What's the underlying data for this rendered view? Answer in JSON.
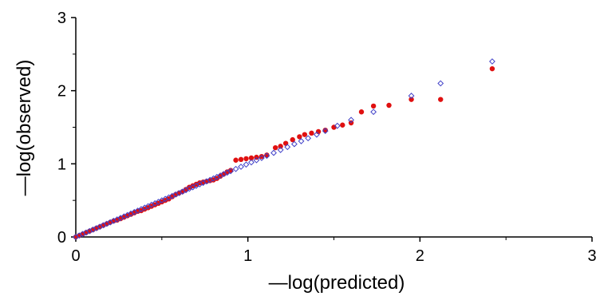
{
  "chart_data": {
    "type": "scatter",
    "title": "",
    "xlabel": "—log(predicted)",
    "ylabel": "—log(observed)",
    "xlim": [
      0,
      3
    ],
    "ylim": [
      0,
      3
    ],
    "x_ticks": [
      "0",
      "1",
      "2",
      "3"
    ],
    "y_ticks": [
      "0",
      "1",
      "2",
      "3"
    ],
    "grid": false,
    "legend": "none",
    "series": [
      {
        "marker": "circle",
        "color": "#e01010",
        "points": [
          [
            0.0,
            0.0
          ],
          [
            0.02,
            0.02
          ],
          [
            0.04,
            0.04
          ],
          [
            0.06,
            0.06
          ],
          [
            0.08,
            0.08
          ],
          [
            0.1,
            0.1
          ],
          [
            0.12,
            0.12
          ],
          [
            0.14,
            0.14
          ],
          [
            0.16,
            0.16
          ],
          [
            0.18,
            0.18
          ],
          [
            0.2,
            0.2
          ],
          [
            0.22,
            0.22
          ],
          [
            0.24,
            0.23
          ],
          [
            0.26,
            0.25
          ],
          [
            0.28,
            0.27
          ],
          [
            0.3,
            0.29
          ],
          [
            0.32,
            0.31
          ],
          [
            0.34,
            0.33
          ],
          [
            0.36,
            0.35
          ],
          [
            0.38,
            0.36
          ],
          [
            0.4,
            0.38
          ],
          [
            0.42,
            0.4
          ],
          [
            0.44,
            0.42
          ],
          [
            0.46,
            0.44
          ],
          [
            0.48,
            0.46
          ],
          [
            0.5,
            0.48
          ],
          [
            0.52,
            0.5
          ],
          [
            0.54,
            0.52
          ],
          [
            0.56,
            0.55
          ],
          [
            0.58,
            0.58
          ],
          [
            0.6,
            0.6
          ],
          [
            0.62,
            0.62
          ],
          [
            0.64,
            0.65
          ],
          [
            0.66,
            0.68
          ],
          [
            0.68,
            0.7
          ],
          [
            0.7,
            0.72
          ],
          [
            0.72,
            0.74
          ],
          [
            0.74,
            0.75
          ],
          [
            0.76,
            0.76
          ],
          [
            0.78,
            0.77
          ],
          [
            0.8,
            0.78
          ],
          [
            0.82,
            0.8
          ],
          [
            0.84,
            0.83
          ],
          [
            0.86,
            0.86
          ],
          [
            0.88,
            0.89
          ],
          [
            0.9,
            0.91
          ],
          [
            0.93,
            1.05
          ],
          [
            0.96,
            1.06
          ],
          [
            0.99,
            1.07
          ],
          [
            1.02,
            1.08
          ],
          [
            1.05,
            1.09
          ],
          [
            1.08,
            1.1
          ],
          [
            1.11,
            1.12
          ],
          [
            1.16,
            1.22
          ],
          [
            1.19,
            1.24
          ],
          [
            1.22,
            1.28
          ],
          [
            1.26,
            1.33
          ],
          [
            1.3,
            1.37
          ],
          [
            1.33,
            1.4
          ],
          [
            1.37,
            1.42
          ],
          [
            1.41,
            1.44
          ],
          [
            1.45,
            1.46
          ],
          [
            1.5,
            1.5
          ],
          [
            1.55,
            1.53
          ],
          [
            1.6,
            1.56
          ],
          [
            1.66,
            1.71
          ],
          [
            1.73,
            1.79
          ],
          [
            1.82,
            1.8
          ],
          [
            1.95,
            1.88
          ],
          [
            2.12,
            1.88
          ],
          [
            2.42,
            2.3
          ]
        ]
      },
      {
        "marker": "diamond",
        "color": "#4040c8",
        "points": [
          [
            0.0,
            0.0
          ],
          [
            0.02,
            0.02
          ],
          [
            0.04,
            0.04
          ],
          [
            0.06,
            0.06
          ],
          [
            0.08,
            0.08
          ],
          [
            0.1,
            0.1
          ],
          [
            0.12,
            0.12
          ],
          [
            0.14,
            0.14
          ],
          [
            0.16,
            0.16
          ],
          [
            0.18,
            0.18
          ],
          [
            0.2,
            0.2
          ],
          [
            0.22,
            0.22
          ],
          [
            0.24,
            0.24
          ],
          [
            0.26,
            0.26
          ],
          [
            0.28,
            0.28
          ],
          [
            0.3,
            0.3
          ],
          [
            0.32,
            0.32
          ],
          [
            0.34,
            0.34
          ],
          [
            0.36,
            0.36
          ],
          [
            0.38,
            0.38
          ],
          [
            0.4,
            0.4
          ],
          [
            0.42,
            0.42
          ],
          [
            0.44,
            0.44
          ],
          [
            0.46,
            0.46
          ],
          [
            0.48,
            0.48
          ],
          [
            0.5,
            0.5
          ],
          [
            0.52,
            0.52
          ],
          [
            0.54,
            0.54
          ],
          [
            0.56,
            0.56
          ],
          [
            0.58,
            0.58
          ],
          [
            0.6,
            0.6
          ],
          [
            0.62,
            0.62
          ],
          [
            0.64,
            0.64
          ],
          [
            0.66,
            0.66
          ],
          [
            0.68,
            0.68
          ],
          [
            0.7,
            0.7
          ],
          [
            0.72,
            0.72
          ],
          [
            0.74,
            0.74
          ],
          [
            0.76,
            0.76
          ],
          [
            0.78,
            0.78
          ],
          [
            0.8,
            0.8
          ],
          [
            0.82,
            0.82
          ],
          [
            0.84,
            0.84
          ],
          [
            0.86,
            0.86
          ],
          [
            0.88,
            0.88
          ],
          [
            0.9,
            0.9
          ],
          [
            0.93,
            0.93
          ],
          [
            0.96,
            0.96
          ],
          [
            0.99,
            0.99
          ],
          [
            1.02,
            1.02
          ],
          [
            1.05,
            1.05
          ],
          [
            1.08,
            1.08
          ],
          [
            1.11,
            1.11
          ],
          [
            1.15,
            1.15
          ],
          [
            1.19,
            1.19
          ],
          [
            1.23,
            1.23
          ],
          [
            1.27,
            1.27
          ],
          [
            1.31,
            1.31
          ],
          [
            1.35,
            1.35
          ],
          [
            1.4,
            1.4
          ],
          [
            1.45,
            1.45
          ],
          [
            1.52,
            1.52
          ],
          [
            1.6,
            1.6
          ],
          [
            1.73,
            1.71
          ],
          [
            1.95,
            1.93
          ],
          [
            2.12,
            2.1
          ],
          [
            2.42,
            2.4
          ]
        ]
      }
    ]
  }
}
